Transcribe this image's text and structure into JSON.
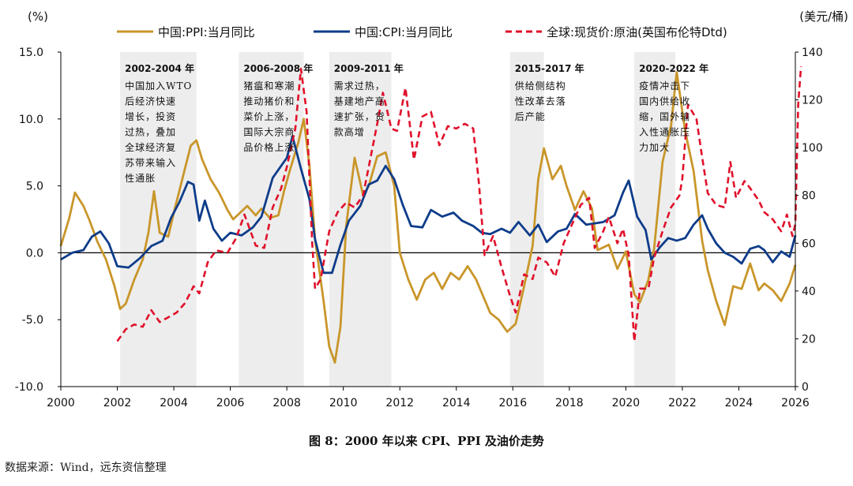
{
  "chart_data": {
    "type": "line",
    "left_axis_unit": "(%)",
    "right_axis_unit": "(美元/桶)",
    "xlim": [
      2000,
      2026
    ],
    "ylim_left": [
      -10,
      15
    ],
    "ylim_right": [
      0,
      140
    ],
    "x_ticks": [
      2000,
      2002,
      2004,
      2006,
      2008,
      2010,
      2012,
      2014,
      2016,
      2018,
      2020,
      2022,
      2024,
      2026
    ],
    "x_tick_labels": [
      "2000",
      "2002",
      "2004",
      "2006",
      "2008",
      "2010",
      "2012",
      "2014",
      "2016",
      "2018",
      "2020",
      "2022",
      "2024",
      "2026"
    ],
    "y_left_ticks": [
      -10,
      -5,
      0,
      5,
      10,
      15
    ],
    "y_left_tick_labels": [
      "-10.0",
      "-5.0",
      "0.0",
      "5.0",
      "10.0",
      "15.0"
    ],
    "y_right_ticks": [
      0,
      20,
      40,
      60,
      80,
      100,
      120,
      140
    ],
    "y_right_tick_labels": [
      "0",
      "20",
      "40",
      "60",
      "80",
      "100",
      "120",
      "140"
    ],
    "legend_position": "top",
    "series": [
      {
        "name": "中国:PPI:当月同比",
        "axis": "left",
        "color": "#C9962A",
        "style": "solid",
        "points": [
          [
            2000.0,
            0.5
          ],
          [
            2000.3,
            2.6
          ],
          [
            2000.5,
            4.5
          ],
          [
            2000.8,
            3.5
          ],
          [
            2001.0,
            2.5
          ],
          [
            2001.3,
            0.8
          ],
          [
            2001.6,
            -0.5
          ],
          [
            2001.9,
            -2.5
          ],
          [
            2002.1,
            -4.2
          ],
          [
            2002.3,
            -3.8
          ],
          [
            2002.6,
            -2.0
          ],
          [
            2002.9,
            -0.5
          ],
          [
            2003.1,
            1.5
          ],
          [
            2003.3,
            4.6
          ],
          [
            2003.5,
            1.5
          ],
          [
            2003.8,
            1.2
          ],
          [
            2004.0,
            3.0
          ],
          [
            2004.3,
            5.5
          ],
          [
            2004.6,
            8.0
          ],
          [
            2004.8,
            8.4
          ],
          [
            2005.0,
            7.0
          ],
          [
            2005.3,
            5.5
          ],
          [
            2005.6,
            4.5
          ],
          [
            2005.9,
            3.2
          ],
          [
            2006.1,
            2.5
          ],
          [
            2006.3,
            2.9
          ],
          [
            2006.6,
            3.5
          ],
          [
            2006.9,
            2.8
          ],
          [
            2007.1,
            3.3
          ],
          [
            2007.4,
            2.6
          ],
          [
            2007.7,
            2.8
          ],
          [
            2007.9,
            4.6
          ],
          [
            2008.1,
            6.1
          ],
          [
            2008.4,
            8.2
          ],
          [
            2008.6,
            10.0
          ],
          [
            2008.8,
            6.5
          ],
          [
            2009.0,
            1.0
          ],
          [
            2009.3,
            -3.6
          ],
          [
            2009.5,
            -7.0
          ],
          [
            2009.7,
            -8.2
          ],
          [
            2009.9,
            -5.5
          ],
          [
            2010.1,
            2.0
          ],
          [
            2010.4,
            7.1
          ],
          [
            2010.7,
            4.3
          ],
          [
            2010.9,
            5.0
          ],
          [
            2011.2,
            7.2
          ],
          [
            2011.5,
            7.5
          ],
          [
            2011.8,
            5.0
          ],
          [
            2012.0,
            0.0
          ],
          [
            2012.3,
            -2.0
          ],
          [
            2012.6,
            -3.5
          ],
          [
            2012.9,
            -2.0
          ],
          [
            2013.2,
            -1.5
          ],
          [
            2013.5,
            -2.7
          ],
          [
            2013.8,
            -1.5
          ],
          [
            2014.1,
            -2.0
          ],
          [
            2014.4,
            -1.0
          ],
          [
            2014.7,
            -2.0
          ],
          [
            2014.9,
            -3.0
          ],
          [
            2015.2,
            -4.5
          ],
          [
            2015.5,
            -5.0
          ],
          [
            2015.8,
            -5.9
          ],
          [
            2016.1,
            -5.3
          ],
          [
            2016.4,
            -2.5
          ],
          [
            2016.7,
            0.5
          ],
          [
            2016.9,
            5.5
          ],
          [
            2017.1,
            7.8
          ],
          [
            2017.4,
            5.5
          ],
          [
            2017.7,
            6.5
          ],
          [
            2017.9,
            5.0
          ],
          [
            2018.2,
            3.2
          ],
          [
            2018.5,
            4.6
          ],
          [
            2018.8,
            3.3
          ],
          [
            2019.0,
            0.2
          ],
          [
            2019.4,
            0.6
          ],
          [
            2019.7,
            -1.2
          ],
          [
            2020.0,
            0.1
          ],
          [
            2020.3,
            -3.1
          ],
          [
            2020.5,
            -3.7
          ],
          [
            2020.8,
            -2.0
          ],
          [
            2021.0,
            0.3
          ],
          [
            2021.3,
            6.8
          ],
          [
            2021.6,
            9.5
          ],
          [
            2021.8,
            13.5
          ],
          [
            2022.1,
            9.1
          ],
          [
            2022.4,
            6.1
          ],
          [
            2022.7,
            0.9
          ],
          [
            2022.9,
            -1.3
          ],
          [
            2023.2,
            -3.6
          ],
          [
            2023.5,
            -5.4
          ],
          [
            2023.8,
            -2.5
          ],
          [
            2024.1,
            -2.7
          ],
          [
            2024.4,
            -0.8
          ],
          [
            2024.7,
            -2.8
          ],
          [
            2024.9,
            -2.3
          ],
          [
            2025.2,
            -2.8
          ],
          [
            2025.5,
            -3.6
          ],
          [
            2025.8,
            -2.3
          ],
          [
            2026.0,
            -0.9
          ]
        ]
      },
      {
        "name": "中国:CPI:当月同比",
        "axis": "left",
        "color": "#0E3C8A",
        "style": "solid",
        "points": [
          [
            2000.0,
            -0.5
          ],
          [
            2000.4,
            0.0
          ],
          [
            2000.8,
            0.2
          ],
          [
            2001.1,
            1.2
          ],
          [
            2001.4,
            1.6
          ],
          [
            2001.7,
            0.7
          ],
          [
            2002.0,
            -1.0
          ],
          [
            2002.4,
            -1.1
          ],
          [
            2002.8,
            -0.4
          ],
          [
            2003.2,
            0.5
          ],
          [
            2003.6,
            0.9
          ],
          [
            2003.9,
            2.6
          ],
          [
            2004.2,
            3.8
          ],
          [
            2004.5,
            5.3
          ],
          [
            2004.7,
            5.1
          ],
          [
            2004.9,
            2.4
          ],
          [
            2005.1,
            3.9
          ],
          [
            2005.4,
            1.8
          ],
          [
            2005.7,
            0.9
          ],
          [
            2006.0,
            1.5
          ],
          [
            2006.4,
            1.3
          ],
          [
            2006.8,
            1.9
          ],
          [
            2007.1,
            2.7
          ],
          [
            2007.5,
            5.6
          ],
          [
            2007.8,
            6.5
          ],
          [
            2008.0,
            7.1
          ],
          [
            2008.2,
            8.7
          ],
          [
            2008.5,
            6.3
          ],
          [
            2008.8,
            4.0
          ],
          [
            2009.0,
            1.0
          ],
          [
            2009.3,
            -1.5
          ],
          [
            2009.6,
            -1.5
          ],
          [
            2009.9,
            0.6
          ],
          [
            2010.2,
            2.4
          ],
          [
            2010.6,
            3.5
          ],
          [
            2010.9,
            5.1
          ],
          [
            2011.2,
            5.4
          ],
          [
            2011.5,
            6.5
          ],
          [
            2011.8,
            5.5
          ],
          [
            2012.1,
            3.6
          ],
          [
            2012.4,
            2.0
          ],
          [
            2012.8,
            1.9
          ],
          [
            2013.1,
            3.2
          ],
          [
            2013.5,
            2.7
          ],
          [
            2013.9,
            3.0
          ],
          [
            2014.2,
            2.4
          ],
          [
            2014.6,
            2.0
          ],
          [
            2014.9,
            1.5
          ],
          [
            2015.2,
            1.4
          ],
          [
            2015.6,
            1.8
          ],
          [
            2015.9,
            1.5
          ],
          [
            2016.2,
            2.3
          ],
          [
            2016.6,
            1.3
          ],
          [
            2016.9,
            2.1
          ],
          [
            2017.2,
            0.8
          ],
          [
            2017.6,
            1.6
          ],
          [
            2017.9,
            1.8
          ],
          [
            2018.2,
            2.9
          ],
          [
            2018.6,
            2.1
          ],
          [
            2018.9,
            2.2
          ],
          [
            2019.2,
            2.3
          ],
          [
            2019.6,
            2.8
          ],
          [
            2019.9,
            4.5
          ],
          [
            2020.1,
            5.4
          ],
          [
            2020.4,
            2.7
          ],
          [
            2020.7,
            1.7
          ],
          [
            2020.9,
            -0.5
          ],
          [
            2021.2,
            0.4
          ],
          [
            2021.5,
            1.1
          ],
          [
            2021.8,
            0.9
          ],
          [
            2022.1,
            1.1
          ],
          [
            2022.4,
            2.1
          ],
          [
            2022.7,
            2.8
          ],
          [
            2022.9,
            1.8
          ],
          [
            2023.2,
            0.7
          ],
          [
            2023.5,
            0.0
          ],
          [
            2023.8,
            -0.3
          ],
          [
            2024.1,
            -0.8
          ],
          [
            2024.4,
            0.3
          ],
          [
            2024.7,
            0.5
          ],
          [
            2024.9,
            0.2
          ],
          [
            2025.2,
            -0.7
          ],
          [
            2025.5,
            0.1
          ],
          [
            2025.8,
            -0.3
          ],
          [
            2026.0,
            1.3
          ]
        ]
      },
      {
        "name": "全球:现货价:原油(英国布伦特Dtd)",
        "axis": "right",
        "color": "#E0102A",
        "style": "dashed",
        "points": [
          [
            2002.0,
            19.0
          ],
          [
            2002.3,
            24.0
          ],
          [
            2002.6,
            26.0
          ],
          [
            2002.9,
            25.0
          ],
          [
            2003.2,
            32.0
          ],
          [
            2003.5,
            27.0
          ],
          [
            2003.8,
            29.0
          ],
          [
            2004.1,
            31.0
          ],
          [
            2004.4,
            35.0
          ],
          [
            2004.7,
            42.0
          ],
          [
            2004.9,
            39.0
          ],
          [
            2005.2,
            52.0
          ],
          [
            2005.5,
            57.0
          ],
          [
            2005.9,
            56.0
          ],
          [
            2006.2,
            62.0
          ],
          [
            2006.5,
            72.0
          ],
          [
            2006.9,
            59.0
          ],
          [
            2007.2,
            58.0
          ],
          [
            2007.5,
            75.0
          ],
          [
            2007.8,
            83.0
          ],
          [
            2008.0,
            92.0
          ],
          [
            2008.3,
            108.0
          ],
          [
            2008.5,
            133.0
          ],
          [
            2008.7,
            115.0
          ],
          [
            2008.9,
            60.0
          ],
          [
            2009.0,
            41.0
          ],
          [
            2009.2,
            45.0
          ],
          [
            2009.5,
            65.0
          ],
          [
            2009.8,
            73.0
          ],
          [
            2010.1,
            77.0
          ],
          [
            2010.4,
            75.0
          ],
          [
            2010.7,
            80.0
          ],
          [
            2010.9,
            92.0
          ],
          [
            2011.2,
            110.0
          ],
          [
            2011.4,
            123.0
          ],
          [
            2011.7,
            108.0
          ],
          [
            2011.9,
            107.0
          ],
          [
            2012.2,
            125.0
          ],
          [
            2012.5,
            95.0
          ],
          [
            2012.8,
            113.0
          ],
          [
            2013.1,
            115.0
          ],
          [
            2013.4,
            101.0
          ],
          [
            2013.7,
            109.0
          ],
          [
            2014.0,
            108.0
          ],
          [
            2014.3,
            110.0
          ],
          [
            2014.6,
            108.0
          ],
          [
            2014.8,
            85.0
          ],
          [
            2015.0,
            55.0
          ],
          [
            2015.3,
            63.0
          ],
          [
            2015.6,
            50.0
          ],
          [
            2015.9,
            38.0
          ],
          [
            2016.1,
            31.0
          ],
          [
            2016.4,
            47.0
          ],
          [
            2016.7,
            45.0
          ],
          [
            2016.9,
            54.0
          ],
          [
            2017.2,
            52.0
          ],
          [
            2017.5,
            46.0
          ],
          [
            2017.8,
            60.0
          ],
          [
            2018.1,
            68.0
          ],
          [
            2018.4,
            76.0
          ],
          [
            2018.7,
            79.0
          ],
          [
            2018.9,
            58.0
          ],
          [
            2019.2,
            65.0
          ],
          [
            2019.4,
            71.0
          ],
          [
            2019.7,
            60.0
          ],
          [
            2019.9,
            66.0
          ],
          [
            2020.1,
            55.0
          ],
          [
            2020.3,
            19.0
          ],
          [
            2020.5,
            41.0
          ],
          [
            2020.8,
            41.0
          ],
          [
            2021.0,
            54.0
          ],
          [
            2021.3,
            65.0
          ],
          [
            2021.6,
            75.0
          ],
          [
            2021.9,
            80.0
          ],
          [
            2022.0,
            87.0
          ],
          [
            2022.2,
            118.0
          ],
          [
            2022.5,
            112.0
          ],
          [
            2022.7,
            96.0
          ],
          [
            2022.9,
            81.0
          ],
          [
            2023.2,
            76.0
          ],
          [
            2023.5,
            75.0
          ],
          [
            2023.7,
            94.0
          ],
          [
            2023.9,
            79.0
          ],
          [
            2024.2,
            86.0
          ],
          [
            2024.4,
            83.0
          ],
          [
            2024.7,
            78.0
          ],
          [
            2024.9,
            73.0
          ],
          [
            2025.2,
            70.0
          ],
          [
            2025.5,
            65.0
          ],
          [
            2025.7,
            72.0
          ],
          [
            2025.9,
            63.0
          ],
          [
            2026.0,
            68.0
          ],
          [
            2026.1,
            118.0
          ],
          [
            2026.2,
            134.0
          ]
        ]
      }
    ],
    "shaded_periods": [
      {
        "start": 2002.1,
        "end": 2004.8,
        "label": "2002-2004 年",
        "text_lines": [
          "中国加入WTO",
          "后经济快速",
          "增长，投资",
          "过热，叠加",
          "全球经济复",
          "苏带来输入",
          "性通胀"
        ]
      },
      {
        "start": 2006.3,
        "end": 2008.6,
        "label": "2006-2008 年",
        "text_lines": [
          "猪瘟和寒潮",
          "推动猪价和",
          "菜价上涨，",
          "国际大宗商",
          "品价格上涨"
        ]
      },
      {
        "start": 2009.5,
        "end": 2011.7,
        "label": "2009-2011 年",
        "text_lines": [
          "需求过热，",
          "基建地产高",
          "速扩张，贷",
          "款高增"
        ]
      },
      {
        "start": 2015.9,
        "end": 2017.1,
        "label": "2015-2017 年",
        "text_lines": [
          "供给侧结构",
          "性改革去落",
          "后产能"
        ]
      },
      {
        "start": 2020.3,
        "end": 2021.75,
        "label": "2020-2022 年",
        "text_lines": [
          "疫情冲击下",
          "国内供给收",
          "缩，国外输",
          "入性通胀压",
          "力加大"
        ]
      }
    ]
  },
  "caption": "图 8：2000 年以来 CPI、PPI 及油价走势",
  "source": "数据来源：Wind，远东资信整理"
}
